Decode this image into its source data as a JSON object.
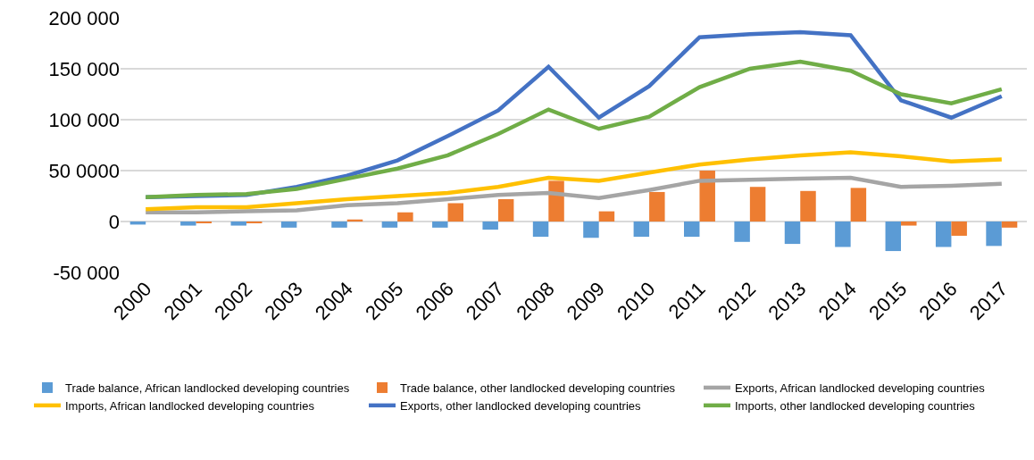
{
  "chart_data": {
    "type": "bar",
    "categories": [
      "2000",
      "2001",
      "2002",
      "2003",
      "2004",
      "2005",
      "2006",
      "2007",
      "2008",
      "2009",
      "2010",
      "2011",
      "2012",
      "2013",
      "2014",
      "2015",
      "2016",
      "2017"
    ],
    "series": [
      {
        "name": "Trade balance, African landlocked developing countries",
        "color": "#5b9bd5",
        "values": [
          -3000,
          -4000,
          -4000,
          -6000,
          -6000,
          -6000,
          -6000,
          -8000,
          -15000,
          -16000,
          -15000,
          -15000,
          -20000,
          -22000,
          -25000,
          -29000,
          -25000,
          -24000
        ]
      },
      {
        "name": "Trade balance, other landlocked developing countries",
        "color": "#ed7d31",
        "values": [
          0,
          -1000,
          -1000,
          0,
          2000,
          9000,
          18000,
          22000,
          40000,
          10000,
          29000,
          50000,
          34000,
          30000,
          33000,
          -4000,
          -14000,
          -6000
        ]
      },
      {
        "name": "Exports, African landlocked developing countries",
        "type": "line",
        "color": "#a5a5a5",
        "values": [
          9000,
          9000,
          10000,
          11000,
          16000,
          18000,
          22000,
          26000,
          28000,
          23000,
          31000,
          40000,
          41000,
          42000,
          43000,
          34000,
          35000,
          37000
        ]
      },
      {
        "name": "Imports, African landlocked developing countries",
        "type": "line",
        "color": "#ffc000",
        "values": [
          12000,
          14000,
          14000,
          18000,
          22000,
          25000,
          28000,
          34000,
          43000,
          40000,
          48000,
          56000,
          61000,
          65000,
          68000,
          64000,
          59000,
          61000
        ]
      },
      {
        "name": "Exports, other landlocked developing countries",
        "type": "line",
        "color": "#4472c4",
        "values": [
          24000,
          25000,
          26000,
          34000,
          45000,
          60000,
          84000,
          109000,
          152000,
          102000,
          133000,
          181000,
          184000,
          186000,
          183000,
          119000,
          102000,
          123000
        ]
      },
      {
        "name": "Imports, other landlocked developing countries",
        "type": "line",
        "color": "#70ad47",
        "values": [
          24000,
          26000,
          27000,
          32000,
          42000,
          52000,
          65000,
          86000,
          110000,
          91000,
          103000,
          132000,
          150000,
          157000,
          148000,
          125000,
          116000,
          130000
        ]
      }
    ],
    "ylim": [
      -50000,
      200000
    ],
    "yticks": [
      {
        "value": -50000,
        "label": "-50 000"
      },
      0,
      {
        "value": 50000,
        "label": "50 0000"
      },
      {
        "value": 100000,
        "label": "100 000"
      },
      {
        "value": 150000,
        "label": "150 000"
      },
      {
        "value": 200000,
        "label": "200 000"
      }
    ],
    "grid": "y",
    "legend": "bottom",
    "marker": "none",
    "line_style": "solid"
  }
}
